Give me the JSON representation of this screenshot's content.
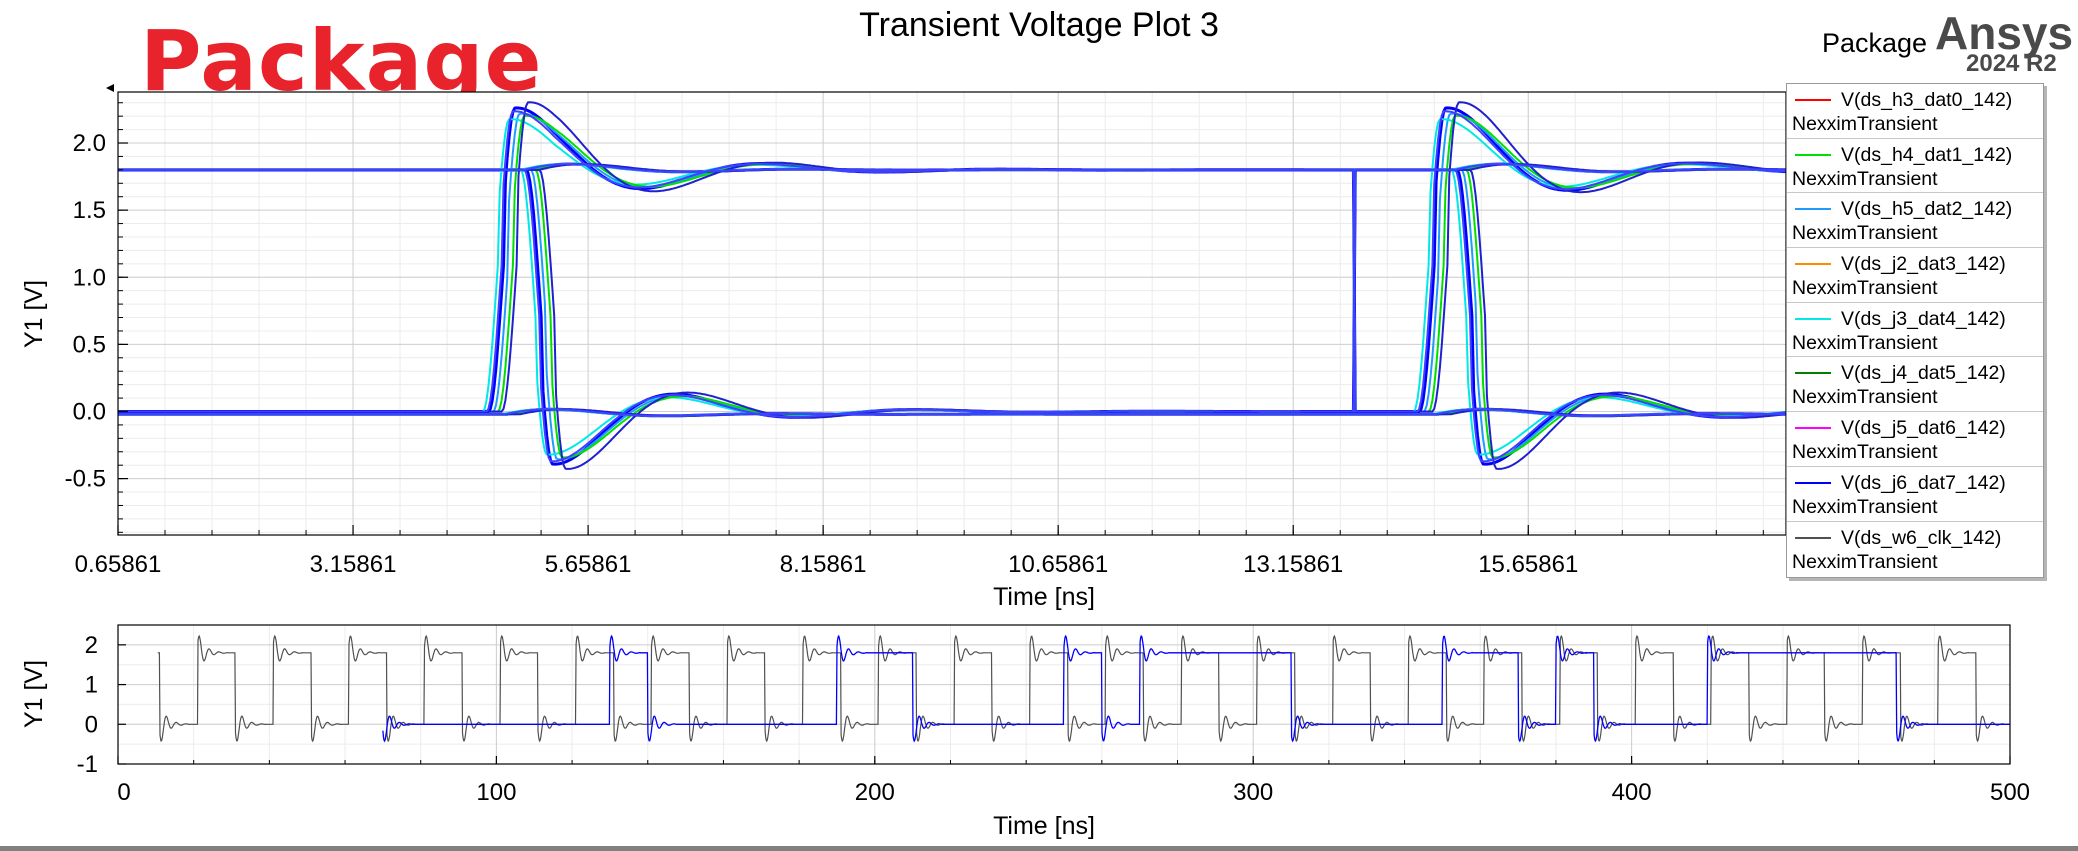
{
  "overlay_label": "Package",
  "brand": {
    "package": "Package",
    "name": "Ansys",
    "version": "2024 R2"
  },
  "chart_data": [
    {
      "type": "line",
      "title": "Transient Voltage Plot 3",
      "xlabel": "Time [ns]",
      "ylabel": "Y1 [V]",
      "xlim": [
        0.65861,
        18.4
      ],
      "ylim": [
        -0.92,
        2.38
      ],
      "xticks": [
        0.65861,
        3.15861,
        5.65861,
        8.15861,
        10.65861,
        13.15861,
        15.65861
      ],
      "xtick_labels": [
        "0.65861",
        "3.15861",
        "5.65861",
        "8.15861",
        "10.65861",
        "13.15861",
        "15.65861"
      ],
      "yticks": [
        -0.5,
        0.0,
        0.5,
        1.0,
        1.5,
        2.0
      ],
      "ytick_labels": [
        "-0.5",
        "0.0",
        "0.5",
        "1.0",
        "1.5",
        "2.0"
      ],
      "grid": true,
      "legend_position": "right",
      "series": [
        {
          "name": "V(ds_h3_dat0_142)",
          "sub": "NexximTransient",
          "color": "#ff0000"
        },
        {
          "name": "V(ds_h4_dat1_142)",
          "sub": "NexximTransient",
          "color": "#00e000"
        },
        {
          "name": "V(ds_h5_dat2_142)",
          "sub": "NexximTransient",
          "color": "#1e9bff"
        },
        {
          "name": "V(ds_j2_dat3_142)",
          "sub": "NexximTransient",
          "color": "#ff8c00"
        },
        {
          "name": "V(ds_j3_dat4_142)",
          "sub": "NexximTransient",
          "color": "#00e8e8"
        },
        {
          "name": "V(ds_j4_dat5_142)",
          "sub": "NexximTransient",
          "color": "#008000"
        },
        {
          "name": "V(ds_j5_dat6_142)",
          "sub": "NexximTransient",
          "color": "#ff00ff"
        },
        {
          "name": "V(ds_j6_dat7_142)",
          "sub": "NexximTransient",
          "color": "#0000ff"
        },
        {
          "name": "V(ds_w6_clk_142)",
          "sub": "NexximTransient",
          "color": "#505050"
        }
      ],
      "edges": [
        {
          "t": 4.6,
          "direction": "rise"
        },
        {
          "t": 5.0,
          "direction": "fall"
        },
        {
          "t": 14.5,
          "direction": "rise"
        },
        {
          "t": 14.9,
          "direction": "fall"
        }
      ],
      "levels": {
        "high": 1.8,
        "low": 0.0,
        "overshoot_peak": 2.35,
        "undershoot_peak": -0.74
      }
    },
    {
      "type": "line",
      "xlabel": "Time [ns]",
      "ylabel": "Y1 [V]",
      "xlim": [
        0,
        500
      ],
      "ylim": [
        -1,
        2.5
      ],
      "xticks": [
        0,
        100,
        200,
        300,
        400,
        500
      ],
      "xtick_labels": [
        "0",
        "100",
        "200",
        "300",
        "400",
        "500"
      ],
      "yticks": [
        -1,
        0,
        1,
        2
      ],
      "ytick_labels": [
        "-1",
        "0",
        "1",
        "2"
      ],
      "grid": true,
      "series": [
        {
          "name": "V(ds_w6_clk_142)",
          "color": "#505050",
          "period": 20,
          "high": 1.8,
          "low": 0.0
        },
        {
          "name": "V(ds_j6_dat7_142)",
          "color": "#0000ff",
          "transitions": [
            70,
            130,
            140,
            190,
            210,
            250,
            260,
            270,
            310,
            350,
            370,
            380,
            390,
            420,
            470
          ],
          "initial_state": "high"
        }
      ]
    }
  ]
}
